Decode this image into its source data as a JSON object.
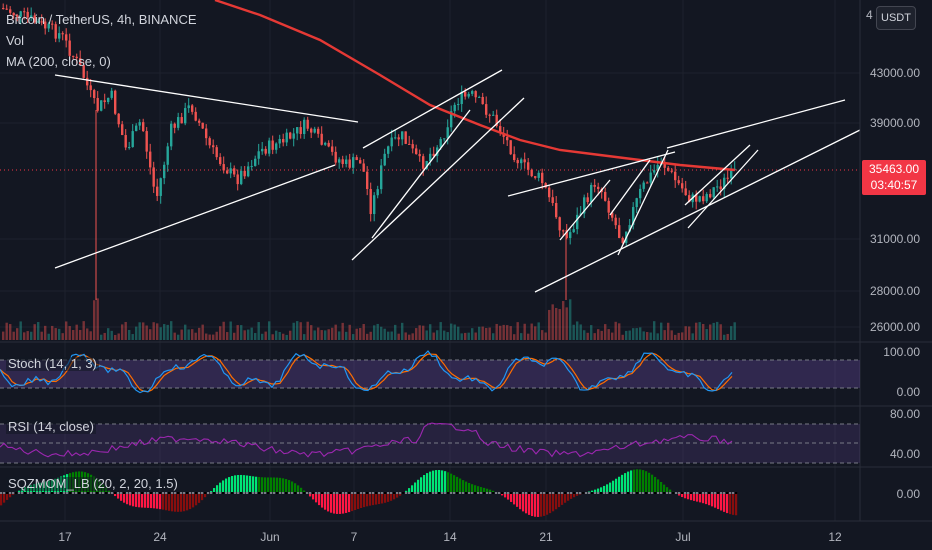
{
  "header": {
    "symbol_line": "Bitcoin / TetherUS, 4h, BINANCE",
    "vol_label": "Vol",
    "ma_label": "MA (200, close, 0)"
  },
  "price_axis": {
    "currency_button": "USDT",
    "top_label_partial": "4",
    "labels": [
      "43000.00",
      "39000.00",
      "31000.00",
      "28000.00",
      "26000.00"
    ],
    "current_price": "35463.00",
    "countdown": "03:40:57"
  },
  "stoch": {
    "label": "Stoch (14, 1, 3)",
    "scale": [
      "100.00",
      "0.00"
    ]
  },
  "rsi": {
    "label": "RSI (14, close)",
    "scale": [
      "80.00",
      "40.00"
    ]
  },
  "sqzmom": {
    "label": "SQZMOM_LB (20, 2, 20, 1.5)",
    "scale": [
      "0.00"
    ]
  },
  "time_axis": {
    "labels": [
      "17",
      "24",
      "Jun",
      "7",
      "14",
      "21",
      "Jul",
      "12"
    ]
  },
  "colors": {
    "background": "#131722",
    "up_candle": "#26a69a",
    "down_candle": "#ef5350",
    "ma_line": "#e53935",
    "trendline": "#ffffff",
    "stoch_k": "#2196f3",
    "stoch_d": "#ff6d00",
    "rsi_line": "#9c27b0",
    "band_fill": "#7e57c2",
    "current_price_bg": "#f23645"
  }
}
